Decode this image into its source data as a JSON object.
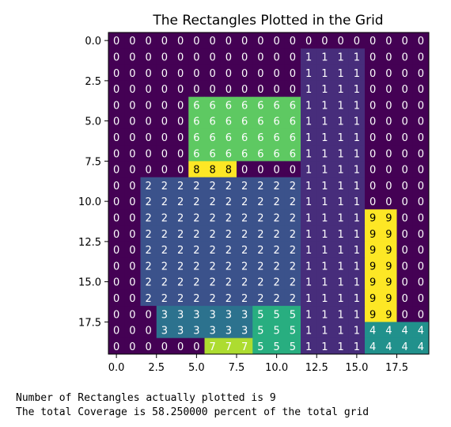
{
  "chart_data": {
    "type": "heatmap",
    "title": "The Rectangles Plotted in the Grid",
    "xlabel": "",
    "ylabel": "",
    "x_ticks": [
      0,
      2.5,
      5,
      7.5,
      10,
      12.5,
      15,
      17.5
    ],
    "x_tick_labels": [
      "0.0",
      "2.5",
      "5.0",
      "7.5",
      "10.0",
      "12.5",
      "15.0",
      "17.5"
    ],
    "y_ticks": [
      0,
      2.5,
      5,
      7.5,
      10,
      12.5,
      15,
      17.5
    ],
    "y_tick_labels": [
      "0.0",
      "2.5",
      "5.0",
      "7.5",
      "10.0",
      "12.5",
      "15.0",
      "17.5"
    ],
    "xlim": [
      -0.5,
      19.5
    ],
    "ylim": [
      19.5,
      -0.5
    ],
    "colormap": "viridis",
    "vmin": 0,
    "vmax": 9,
    "cell_text_dark_color": "#ffffff",
    "cell_text_light_color": "#000000",
    "grid": [
      [
        0,
        0,
        0,
        0,
        0,
        0,
        0,
        0,
        0,
        0,
        0,
        0,
        0,
        0,
        0,
        0,
        0,
        0,
        0,
        0
      ],
      [
        0,
        0,
        0,
        0,
        0,
        0,
        0,
        0,
        0,
        0,
        0,
        0,
        1,
        1,
        1,
        1,
        0,
        0,
        0,
        0
      ],
      [
        0,
        0,
        0,
        0,
        0,
        0,
        0,
        0,
        0,
        0,
        0,
        0,
        1,
        1,
        1,
        1,
        0,
        0,
        0,
        0
      ],
      [
        0,
        0,
        0,
        0,
        0,
        0,
        0,
        0,
        0,
        0,
        0,
        0,
        1,
        1,
        1,
        1,
        0,
        0,
        0,
        0
      ],
      [
        0,
        0,
        0,
        0,
        0,
        6,
        6,
        6,
        6,
        6,
        6,
        6,
        1,
        1,
        1,
        1,
        0,
        0,
        0,
        0
      ],
      [
        0,
        0,
        0,
        0,
        0,
        6,
        6,
        6,
        6,
        6,
        6,
        6,
        1,
        1,
        1,
        1,
        0,
        0,
        0,
        0
      ],
      [
        0,
        0,
        0,
        0,
        0,
        6,
        6,
        6,
        6,
        6,
        6,
        6,
        1,
        1,
        1,
        1,
        0,
        0,
        0,
        0
      ],
      [
        0,
        0,
        0,
        0,
        0,
        6,
        6,
        6,
        6,
        6,
        6,
        6,
        1,
        1,
        1,
        1,
        0,
        0,
        0,
        0
      ],
      [
        0,
        0,
        0,
        0,
        0,
        8,
        8,
        8,
        0,
        0,
        0,
        0,
        1,
        1,
        1,
        1,
        0,
        0,
        0,
        0
      ],
      [
        0,
        0,
        2,
        2,
        2,
        2,
        2,
        2,
        2,
        2,
        2,
        2,
        1,
        1,
        1,
        1,
        0,
        0,
        0,
        0
      ],
      [
        0,
        0,
        2,
        2,
        2,
        2,
        2,
        2,
        2,
        2,
        2,
        2,
        1,
        1,
        1,
        1,
        0,
        0,
        0,
        0
      ],
      [
        0,
        0,
        2,
        2,
        2,
        2,
        2,
        2,
        2,
        2,
        2,
        2,
        1,
        1,
        1,
        1,
        9,
        9,
        0,
        0
      ],
      [
        0,
        0,
        2,
        2,
        2,
        2,
        2,
        2,
        2,
        2,
        2,
        2,
        1,
        1,
        1,
        1,
        9,
        9,
        0,
        0
      ],
      [
        0,
        0,
        2,
        2,
        2,
        2,
        2,
        2,
        2,
        2,
        2,
        2,
        1,
        1,
        1,
        1,
        9,
        9,
        0,
        0
      ],
      [
        0,
        0,
        2,
        2,
        2,
        2,
        2,
        2,
        2,
        2,
        2,
        2,
        1,
        1,
        1,
        1,
        9,
        9,
        0,
        0
      ],
      [
        0,
        0,
        2,
        2,
        2,
        2,
        2,
        2,
        2,
        2,
        2,
        2,
        1,
        1,
        1,
        1,
        9,
        9,
        0,
        0
      ],
      [
        0,
        0,
        2,
        2,
        2,
        2,
        2,
        2,
        2,
        2,
        2,
        2,
        1,
        1,
        1,
        1,
        9,
        9,
        0,
        0
      ],
      [
        0,
        0,
        0,
        3,
        3,
        3,
        3,
        3,
        3,
        5,
        5,
        5,
        1,
        1,
        1,
        1,
        9,
        9,
        0,
        0
      ],
      [
        0,
        0,
        0,
        3,
        3,
        3,
        3,
        3,
        3,
        5,
        5,
        5,
        1,
        1,
        1,
        1,
        4,
        4,
        4,
        4
      ],
      [
        0,
        0,
        0,
        0,
        0,
        0,
        7,
        7,
        7,
        5,
        5,
        5,
        1,
        1,
        1,
        1,
        4,
        4,
        4,
        4
      ]
    ],
    "value_colors": {
      "0": "#440154",
      "1": "#472d7b",
      "2": "#3b528b",
      "3": "#2c728e",
      "4": "#21918c",
      "5": "#28ae80",
      "6": "#5ec962",
      "7": "#addc30",
      "8": "#fde725",
      "9": "#fde725"
    }
  },
  "output_lines": [
    "Number of Rectangles actually plotted is 9",
    "The total Coverage is 58.250000 percent of the total grid"
  ]
}
